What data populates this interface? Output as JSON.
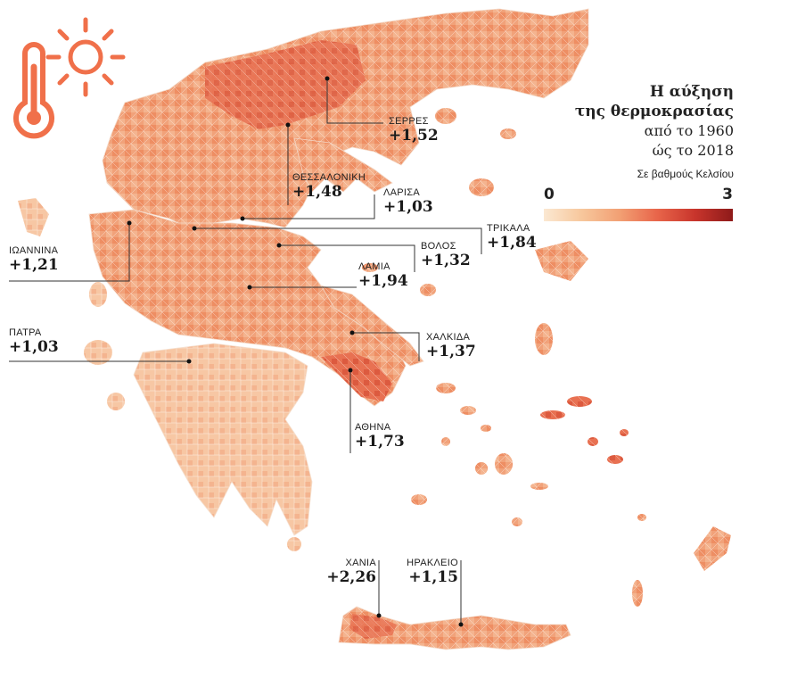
{
  "title": {
    "line1": "Η αύξηση",
    "line2": "της θερμοκρασίας",
    "line3": "από το 1960",
    "line4": "ώς το 2018",
    "unit": "Σε βαθμούς Κελσίου"
  },
  "legend": {
    "min": "0",
    "max": "3",
    "colors": [
      "#fbe8d2",
      "#f7c79c",
      "#f2a074",
      "#e8654a",
      "#c8352c",
      "#8e1a1a"
    ]
  },
  "icons": [
    "thermometer-icon",
    "sun-icon"
  ],
  "accent_color": "#f0704a",
  "cities": [
    {
      "id": "serres",
      "name": "ΣΕΡΡΕΣ",
      "value": "+1,52"
    },
    {
      "id": "thessaloniki",
      "name": "ΘΕΣΣΑΛΟΝΙΚΗ",
      "value": "+1,48"
    },
    {
      "id": "larisa",
      "name": "ΛΑΡΙΣΑ",
      "value": "+1,03"
    },
    {
      "id": "trikala",
      "name": "ΤΡΙΚΑΛΑ",
      "value": "+1,84"
    },
    {
      "id": "volos",
      "name": "ΒΟΛΟΣ",
      "value": "+1,32"
    },
    {
      "id": "lamia",
      "name": "ΛΑΜΙΑ",
      "value": "+1,94"
    },
    {
      "id": "ioannina",
      "name": "ΙΩΑΝΝΙΝΑ",
      "value": "+1,21"
    },
    {
      "id": "patra",
      "name": "ΠΑΤΡΑ",
      "value": "+1,03"
    },
    {
      "id": "chalkida",
      "name": "ΧΑΛΚΙΔΑ",
      "value": "+1,37"
    },
    {
      "id": "athina",
      "name": "ΑΘΗΝΑ",
      "value": "+1,73"
    },
    {
      "id": "chania",
      "name": "ΧΑΝΙΑ",
      "value": "+2,26"
    },
    {
      "id": "irakleio",
      "name": "ΗΡΑΚΛΕΙΟ",
      "value": "+1,15"
    }
  ]
}
